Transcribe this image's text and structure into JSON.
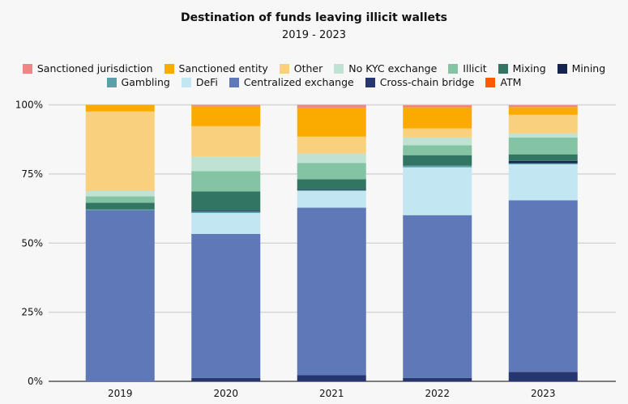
{
  "chart_data": {
    "type": "bar",
    "stacked": true,
    "title": "Destination of funds leaving illicit wallets",
    "subtitle": "2019 - 2023",
    "xlabel": "",
    "ylabel": "",
    "ylim": [
      0,
      100
    ],
    "yticks": [
      "0%",
      "25%",
      "50%",
      "75%",
      "100%"
    ],
    "ytick_values": [
      0,
      25,
      50,
      75,
      100
    ],
    "grid": true,
    "legend_position": "top",
    "categories": [
      "2019",
      "2020",
      "2021",
      "2022",
      "2023"
    ],
    "series": [
      {
        "name": "Cross-chain bridge",
        "color": "#283670",
        "values": [
          0,
          1.2,
          2.2,
          1.2,
          3.4
        ]
      },
      {
        "name": "Centralized exchange",
        "color": "#5f78b8",
        "values": [
          61.8,
          52.1,
          60.6,
          58.9,
          62.1
        ]
      },
      {
        "name": "DeFi",
        "color": "#c3e6f3",
        "values": [
          0,
          7.6,
          6.1,
          17.3,
          13.0
        ]
      },
      {
        "name": "Gambling",
        "color": "#5ba0a8",
        "values": [
          0.4,
          0.5,
          0.3,
          0.6,
          0.4
        ]
      },
      {
        "name": "Mining",
        "color": "#142350",
        "values": [
          0,
          0.3,
          0.3,
          0,
          0.8
        ]
      },
      {
        "name": "Mixing",
        "color": "#337563",
        "values": [
          2.4,
          7.0,
          3.6,
          3.8,
          2.4
        ]
      },
      {
        "name": "Illicit",
        "color": "#84c4a4",
        "values": [
          2.3,
          7.3,
          5.9,
          3.6,
          6.1
        ]
      },
      {
        "name": "No KYC exchange",
        "color": "#c0e2d2",
        "values": [
          1.9,
          5.3,
          3.4,
          2.8,
          1.5
        ]
      },
      {
        "name": "Other",
        "color": "#f9d07e",
        "values": [
          28.8,
          11.0,
          6.1,
          3.3,
          6.7
        ]
      },
      {
        "name": "Sanctioned entity",
        "color": "#fbaa00",
        "values": [
          2.4,
          7.3,
          10.5,
          7.6,
          2.8
        ]
      },
      {
        "name": "Sanctioned jurisdiction",
        "color": "#ef8686",
        "values": [
          0,
          0.4,
          1.0,
          0.8,
          0.7
        ]
      },
      {
        "name": "ATM",
        "color": "#ff5a00",
        "values": [
          0,
          0,
          0,
          0,
          0
        ]
      }
    ]
  },
  "legend": {
    "row1": [
      {
        "label": "Sanctioned jurisdiction",
        "color": "#ef8686"
      },
      {
        "label": "Sanctioned entity",
        "color": "#fbaa00"
      },
      {
        "label": "Other",
        "color": "#f9d07e"
      },
      {
        "label": "No KYC exchange",
        "color": "#c0e2d2"
      },
      {
        "label": "Illicit",
        "color": "#84c4a4"
      },
      {
        "label": "Mixing",
        "color": "#337563"
      },
      {
        "label": "Mining",
        "color": "#142350"
      }
    ],
    "row2": [
      {
        "label": "Gambling",
        "color": "#5ba0a8"
      },
      {
        "label": "DeFi",
        "color": "#c3e6f3"
      },
      {
        "label": "Centralized exchange",
        "color": "#5f78b8"
      },
      {
        "label": "Cross-chain bridge",
        "color": "#283670"
      },
      {
        "label": "ATM",
        "color": "#ff5a00"
      }
    ]
  }
}
